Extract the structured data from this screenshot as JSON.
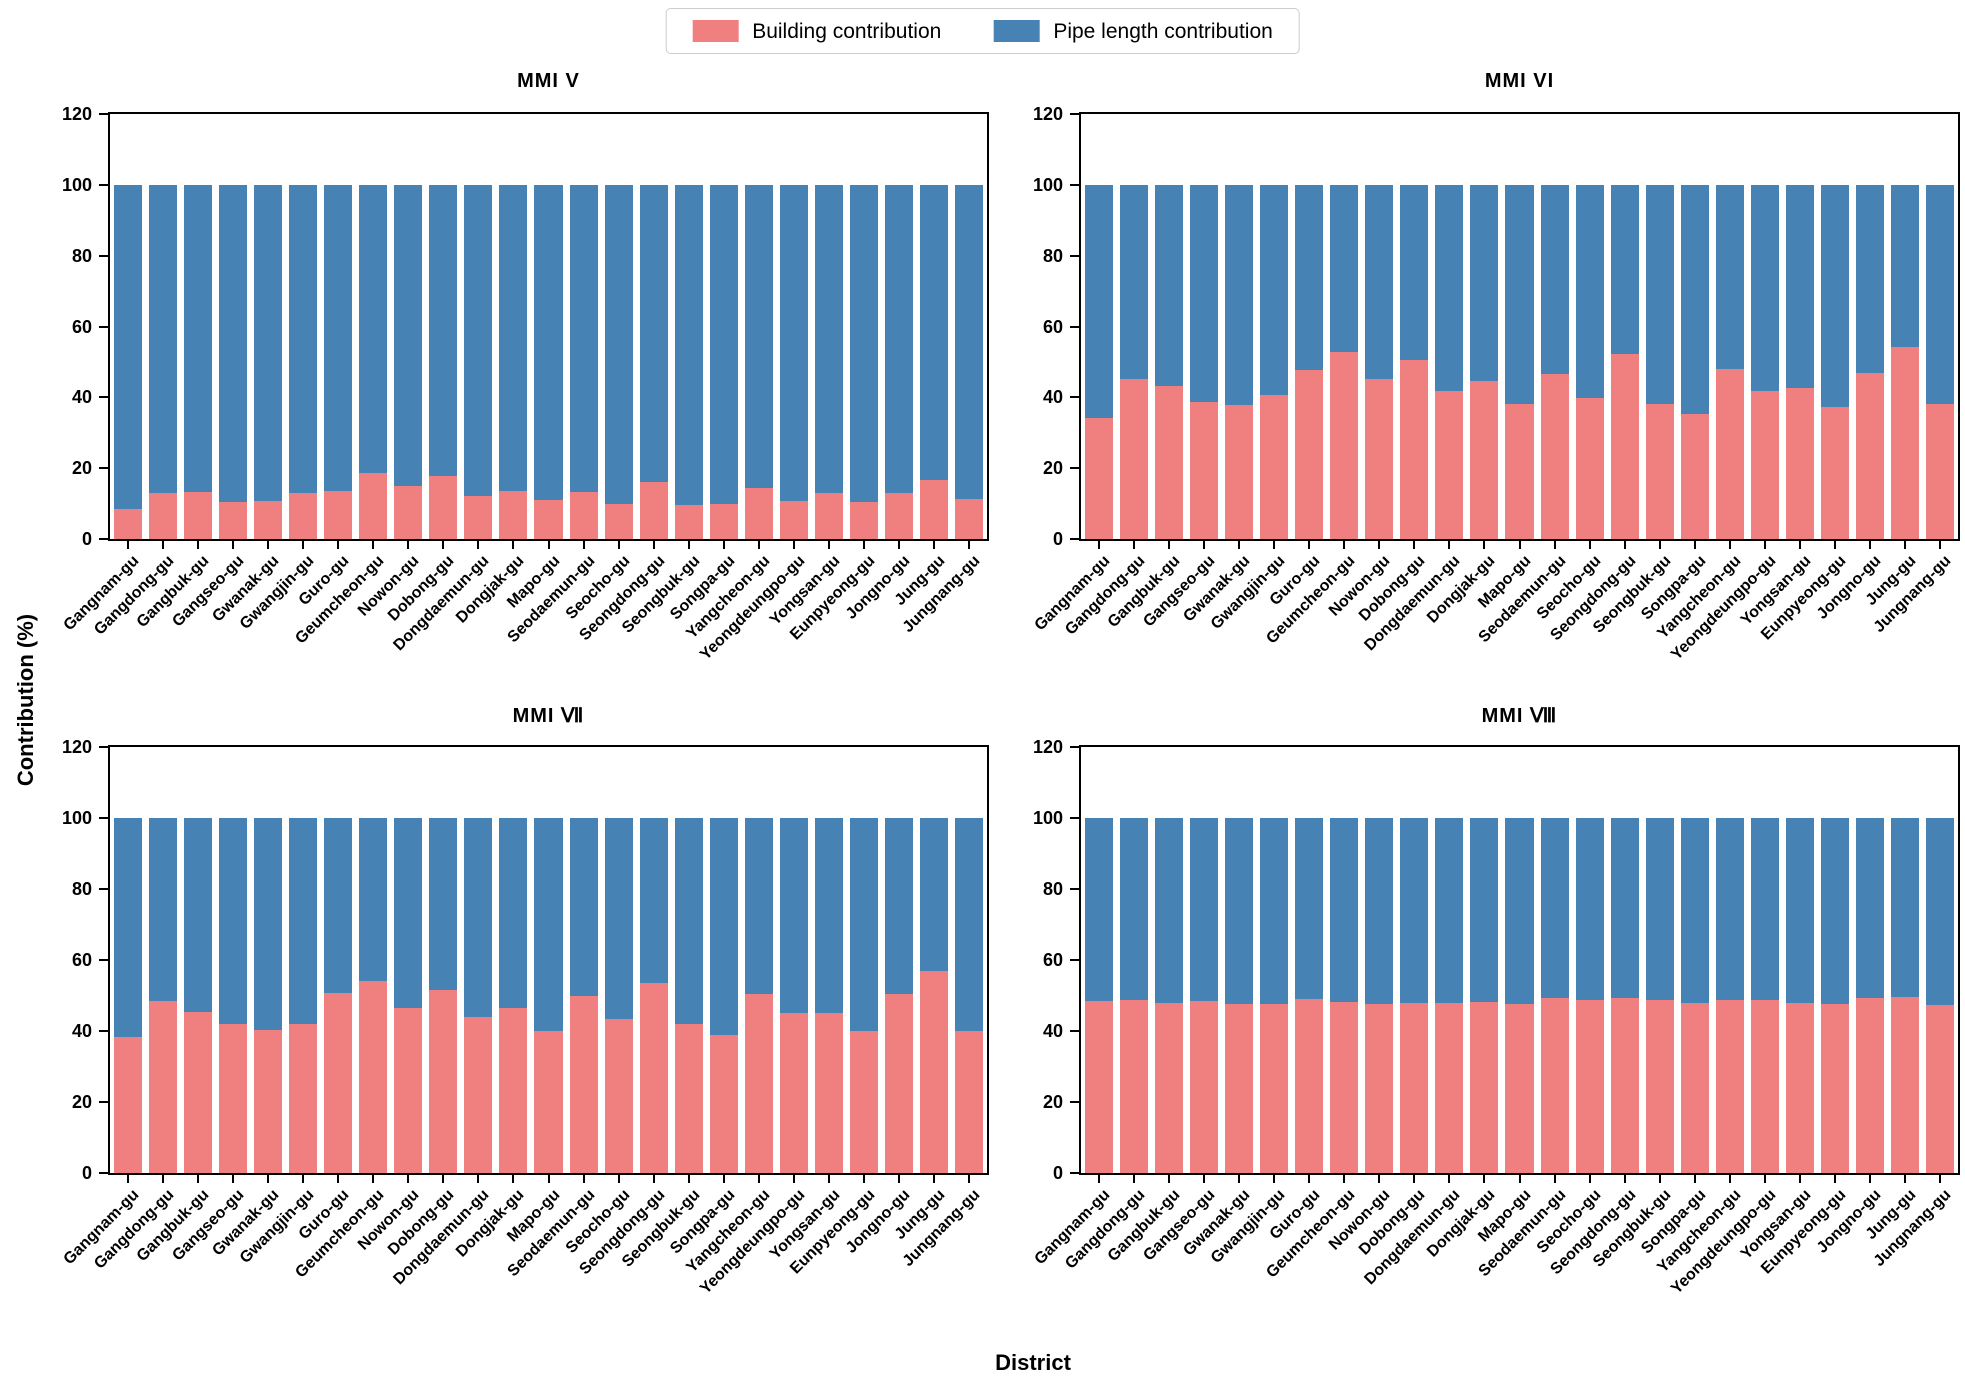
{
  "legend": {
    "items": [
      {
        "label": "Building contribution",
        "color": "#F08080"
      },
      {
        "label": "Pipe length contribution",
        "color": "#4682B4"
      }
    ]
  },
  "xlabel": "District",
  "ylabel": "Contribution (%)",
  "districts": [
    "Gangnam-gu",
    "Gangdong-gu",
    "Gangbuk-gu",
    "Gangseo-gu",
    "Gwanak-gu",
    "Gwangjin-gu",
    "Guro-gu",
    "Geumcheon-gu",
    "Nowon-gu",
    "Dobong-gu",
    "Dongdaemun-gu",
    "Dongjak-gu",
    "Mapo-gu",
    "Seodaemun-gu",
    "Seocho-gu",
    "Seongdong-gu",
    "Seongbuk-gu",
    "Songpa-gu",
    "Yangcheon-gu",
    "Yeongdeungpo-gu",
    "Yongsan-gu",
    "Eunpyeong-gu",
    "Jongno-gu",
    "Jung-gu",
    "Jungnang-gu"
  ],
  "chart_data": [
    {
      "type": "bar",
      "stacked": true,
      "title": "MMI V",
      "ylim": [
        0,
        120
      ],
      "yticks": [
        0,
        20,
        40,
        60,
        80,
        100,
        120
      ],
      "categories": [
        "Gangnam-gu",
        "Gangdong-gu",
        "Gangbuk-gu",
        "Gangseo-gu",
        "Gwanak-gu",
        "Gwangjin-gu",
        "Guro-gu",
        "Geumcheon-gu",
        "Nowon-gu",
        "Dobong-gu",
        "Dongdaemun-gu",
        "Dongjak-gu",
        "Mapo-gu",
        "Seodaemun-gu",
        "Seocho-gu",
        "Seongdong-gu",
        "Seongbuk-gu",
        "Songpa-gu",
        "Yangcheon-gu",
        "Yeongdeungpo-gu",
        "Yongsan-gu",
        "Eunpyeong-gu",
        "Jongno-gu",
        "Jung-gu",
        "Jungnang-gu"
      ],
      "series": [
        {
          "name": "Building contribution",
          "color": "#F08080",
          "values": [
            8.4,
            12.9,
            13.4,
            10.5,
            10.8,
            12.9,
            13.6,
            18.5,
            15.0,
            17.8,
            12.1,
            13.5,
            11.0,
            13.2,
            10.0,
            16.1,
            9.6,
            9.8,
            14.5,
            10.8,
            13.0,
            10.5,
            13.0,
            16.8,
            11.2
          ]
        },
        {
          "name": "Pipe length contribution",
          "color": "#4682B4",
          "values": [
            91.6,
            87.1,
            86.6,
            89.5,
            89.2,
            87.1,
            86.4,
            81.5,
            85.0,
            82.2,
            87.9,
            86.5,
            89.0,
            86.8,
            90.0,
            83.9,
            90.4,
            90.2,
            85.5,
            89.2,
            87.0,
            89.5,
            87.0,
            83.2,
            88.8
          ]
        }
      ]
    },
    {
      "type": "bar",
      "stacked": true,
      "title": "MMI VI",
      "ylim": [
        0,
        120
      ],
      "yticks": [
        0,
        20,
        40,
        60,
        80,
        100,
        120
      ],
      "categories": [
        "Gangnam-gu",
        "Gangdong-gu",
        "Gangbuk-gu",
        "Gangseo-gu",
        "Gwanak-gu",
        "Gwangjin-gu",
        "Guro-gu",
        "Geumcheon-gu",
        "Nowon-gu",
        "Dobong-gu",
        "Dongdaemun-gu",
        "Dongjak-gu",
        "Mapo-gu",
        "Seodaemun-gu",
        "Seocho-gu",
        "Seongdong-gu",
        "Seongbuk-gu",
        "Songpa-gu",
        "Yangcheon-gu",
        "Yeongdeungpo-gu",
        "Yongsan-gu",
        "Eunpyeong-gu",
        "Jongno-gu",
        "Jung-gu",
        "Jungnang-gu"
      ],
      "series": [
        {
          "name": "Building contribution",
          "color": "#F08080",
          "values": [
            34.3,
            45.2,
            43.2,
            38.8,
            37.9,
            40.7,
            47.7,
            52.7,
            45.1,
            50.5,
            41.8,
            44.6,
            38.0,
            46.6,
            39.9,
            52.3,
            38.2,
            35.2,
            47.9,
            41.9,
            42.5,
            37.4,
            46.9,
            54.3,
            38.1
          ]
        },
        {
          "name": "Pipe length contribution",
          "color": "#4682B4",
          "values": [
            65.7,
            54.8,
            56.8,
            61.2,
            62.1,
            59.3,
            52.3,
            47.3,
            54.9,
            49.5,
            58.2,
            55.4,
            62.0,
            53.4,
            60.1,
            47.7,
            61.8,
            64.8,
            52.1,
            58.1,
            57.5,
            62.6,
            53.1,
            45.7,
            61.9
          ]
        }
      ]
    },
    {
      "type": "bar",
      "stacked": true,
      "title": "MMI Ⅶ",
      "ylim": [
        0,
        120
      ],
      "yticks": [
        0,
        20,
        40,
        60,
        80,
        100,
        120
      ],
      "categories": [
        "Gangnam-gu",
        "Gangdong-gu",
        "Gangbuk-gu",
        "Gangseo-gu",
        "Gwanak-gu",
        "Gwangjin-gu",
        "Guro-gu",
        "Geumcheon-gu",
        "Nowon-gu",
        "Dobong-gu",
        "Dongdaemun-gu",
        "Dongjak-gu",
        "Mapo-gu",
        "Seodaemun-gu",
        "Seocho-gu",
        "Seongdong-gu",
        "Seongbuk-gu",
        "Songpa-gu",
        "Yangcheon-gu",
        "Yeongdeungpo-gu",
        "Yongsan-gu",
        "Eunpyeong-gu",
        "Jongno-gu",
        "Jung-gu",
        "Jungnang-gu"
      ],
      "series": [
        {
          "name": "Building contribution",
          "color": "#F08080",
          "values": [
            38.3,
            48.4,
            45.3,
            41.9,
            40.3,
            41.9,
            50.7,
            54.0,
            46.6,
            51.5,
            43.9,
            46.6,
            39.9,
            50.0,
            43.4,
            53.5,
            42.0,
            38.9,
            50.5,
            45.2,
            45.0,
            39.9,
            50.3,
            57.0,
            39.9
          ]
        },
        {
          "name": "Pipe length contribution",
          "color": "#4682B4",
          "values": [
            61.7,
            51.6,
            54.7,
            58.1,
            59.7,
            58.1,
            49.3,
            46.0,
            53.4,
            48.5,
            56.1,
            53.4,
            60.1,
            50.0,
            56.6,
            46.5,
            58.0,
            61.1,
            49.5,
            54.8,
            55.0,
            60.1,
            49.7,
            43.0,
            60.1
          ]
        }
      ]
    },
    {
      "type": "bar",
      "stacked": true,
      "title": "MMI Ⅷ",
      "ylim": [
        0,
        120
      ],
      "yticks": [
        0,
        20,
        40,
        60,
        80,
        100,
        120
      ],
      "categories": [
        "Gangnam-gu",
        "Gangdong-gu",
        "Gangbuk-gu",
        "Gangseo-gu",
        "Gwanak-gu",
        "Gwangjin-gu",
        "Guro-gu",
        "Geumcheon-gu",
        "Nowon-gu",
        "Dobong-gu",
        "Dongdaemun-gu",
        "Dongjak-gu",
        "Mapo-gu",
        "Seodaemun-gu",
        "Seocho-gu",
        "Seongdong-gu",
        "Seongbuk-gu",
        "Songpa-gu",
        "Yangcheon-gu",
        "Yeongdeungpo-gu",
        "Yongsan-gu",
        "Eunpyeong-gu",
        "Jongno-gu",
        "Jung-gu",
        "Jungnang-gu"
      ],
      "series": [
        {
          "name": "Building contribution",
          "color": "#F08080",
          "values": [
            48.5,
            48.8,
            47.9,
            48.5,
            47.7,
            47.6,
            49.1,
            48.3,
            47.6,
            48.0,
            48.0,
            48.3,
            47.7,
            49.2,
            48.8,
            49.4,
            48.7,
            48.0,
            48.7,
            48.8,
            48.0,
            47.7,
            49.2,
            49.6,
            47.4
          ]
        },
        {
          "name": "Pipe length contribution",
          "color": "#4682B4",
          "values": [
            51.5,
            51.2,
            52.1,
            51.5,
            52.3,
            52.4,
            50.9,
            51.7,
            52.4,
            52.0,
            52.0,
            51.7,
            52.3,
            50.8,
            51.2,
            50.6,
            51.3,
            52.0,
            51.3,
            51.2,
            52.0,
            52.3,
            50.8,
            50.4,
            52.6
          ]
        }
      ]
    }
  ]
}
